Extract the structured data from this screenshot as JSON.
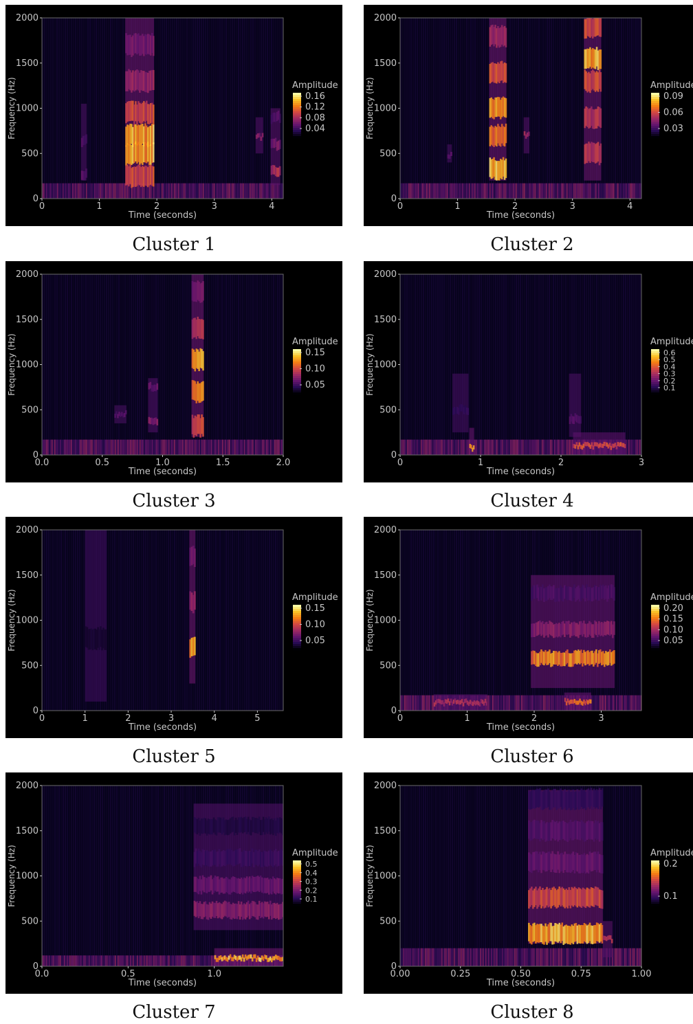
{
  "colormap": "inferno",
  "background": "#000000",
  "chart_data": [
    {
      "type": "heatmap",
      "caption": "Cluster 1",
      "xlabel": "Time (seconds)",
      "ylabel": "Frequency (Hz)",
      "xlim": [
        0,
        4.2
      ],
      "ylim": [
        0,
        2000
      ],
      "xticks": [
        0,
        1,
        2,
        3,
        4
      ],
      "xticklabels": [
        "0",
        "1",
        "2",
        "3",
        "4"
      ],
      "yticks": [
        0,
        500,
        1000,
        1500,
        2000
      ],
      "yticklabels": [
        "0",
        "500",
        "1000",
        "1500",
        "2000"
      ],
      "colorbar": {
        "label": "Amplitude",
        "ticks": [
          "0.16",
          "0.12",
          "0.08",
          "0.04"
        ]
      },
      "noise_band_hz": [
        0,
        170
      ],
      "events": [
        {
          "t0": 0.68,
          "t1": 0.78,
          "f0": 200,
          "f1": 1050,
          "peak": 0.35,
          "bands": [
            [
              270,
              0.9
            ],
            [
              640,
              0.8
            ]
          ]
        },
        {
          "t0": 1.45,
          "t1": 1.95,
          "f0": 150,
          "f1": 2000,
          "peak": 1.0,
          "bands": [
            [
              250,
              0.7
            ],
            [
              500,
              1.0
            ],
            [
              700,
              1.0
            ],
            [
              950,
              0.7
            ],
            [
              1300,
              0.5
            ],
            [
              1700,
              0.4
            ]
          ]
        },
        {
          "t0": 3.72,
          "t1": 3.85,
          "f0": 500,
          "f1": 900,
          "peak": 0.45,
          "bands": [
            [
              680,
              1.0
            ]
          ]
        },
        {
          "t0": 3.98,
          "t1": 4.15,
          "f0": 150,
          "f1": 1000,
          "peak": 0.6,
          "bands": [
            [
              300,
              1.0
            ],
            [
              600,
              0.7
            ],
            [
              900,
              0.5
            ]
          ]
        }
      ]
    },
    {
      "type": "heatmap",
      "caption": "Cluster 2",
      "xlabel": "Time (seconds)",
      "ylabel": "Frequency (Hz)",
      "xlim": [
        0,
        4.2
      ],
      "ylim": [
        0,
        2000
      ],
      "xticks": [
        0,
        1,
        2,
        3,
        4
      ],
      "xticklabels": [
        "0",
        "1",
        "2",
        "3",
        "4"
      ],
      "yticks": [
        0,
        500,
        1000,
        1500,
        2000
      ],
      "yticklabels": [
        "0",
        "500",
        "1000",
        "1500",
        "2000"
      ],
      "colorbar": {
        "label": "Amplitude",
        "ticks": [
          "0.09",
          "0.06",
          "0.03"
        ]
      },
      "noise_band_hz": [
        0,
        170
      ],
      "events": [
        {
          "t0": 0.82,
          "t1": 0.9,
          "f0": 400,
          "f1": 600,
          "peak": 0.3,
          "bands": [
            [
              480,
              1.0
            ]
          ]
        },
        {
          "t0": 1.55,
          "t1": 1.85,
          "f0": 200,
          "f1": 2000,
          "peak": 1.0,
          "bands": [
            [
              330,
              1.0
            ],
            [
              700,
              0.8
            ],
            [
              1000,
              0.9
            ],
            [
              1400,
              0.7
            ],
            [
              1800,
              0.5
            ]
          ]
        },
        {
          "t0": 2.15,
          "t1": 2.25,
          "f0": 500,
          "f1": 900,
          "peak": 0.5,
          "bands": [
            [
              700,
              1.0
            ]
          ]
        },
        {
          "t0": 3.2,
          "t1": 3.5,
          "f0": 200,
          "f1": 2000,
          "peak": 1.0,
          "bands": [
            [
              500,
              0.6
            ],
            [
              900,
              0.6
            ],
            [
              1300,
              0.7
            ],
            [
              1550,
              1.0
            ],
            [
              1900,
              0.7
            ]
          ]
        }
      ]
    },
    {
      "type": "heatmap",
      "caption": "Cluster 3",
      "xlabel": "Time (seconds)",
      "ylabel": "Frequency (Hz)",
      "xlim": [
        0,
        2.0
      ],
      "ylim": [
        0,
        2000
      ],
      "xticks": [
        0,
        0.5,
        1.0,
        1.5,
        2.0
      ],
      "xticklabels": [
        "0.0",
        "0.5",
        "1.0",
        "1.5",
        "2.0"
      ],
      "yticks": [
        0,
        500,
        1000,
        1500,
        2000
      ],
      "yticklabels": [
        "0",
        "500",
        "1000",
        "1500",
        "2000"
      ],
      "colorbar": {
        "label": "Amplitude",
        "ticks": [
          "0.15",
          "0.10",
          "0.05"
        ]
      },
      "noise_band_hz": [
        0,
        170
      ],
      "events": [
        {
          "t0": 0.6,
          "t1": 0.7,
          "f0": 350,
          "f1": 550,
          "peak": 0.3,
          "bands": [
            [
              450,
              1.0
            ]
          ]
        },
        {
          "t0": 0.88,
          "t1": 0.96,
          "f0": 250,
          "f1": 850,
          "peak": 0.45,
          "bands": [
            [
              380,
              1.0
            ],
            [
              750,
              0.8
            ]
          ]
        },
        {
          "t0": 1.24,
          "t1": 1.34,
          "f0": 200,
          "f1": 2000,
          "peak": 1.0,
          "bands": [
            [
              320,
              0.7
            ],
            [
              700,
              0.9
            ],
            [
              1050,
              1.0
            ],
            [
              1400,
              0.6
            ],
            [
              1800,
              0.4
            ]
          ]
        }
      ]
    },
    {
      "type": "heatmap",
      "caption": "Cluster 4",
      "xlabel": "Time (seconds)",
      "ylabel": "Frequency (Hz)",
      "xlim": [
        0,
        3.0
      ],
      "ylim": [
        0,
        2000
      ],
      "xticks": [
        0,
        1,
        2,
        3
      ],
      "xticklabels": [
        "0",
        "1",
        "2",
        "3"
      ],
      "yticks": [
        0,
        500,
        1000,
        1500,
        2000
      ],
      "yticklabels": [
        "0",
        "500",
        "1000",
        "1500",
        "2000"
      ],
      "colorbar": {
        "label": "Amplitude",
        "ticks": [
          "0.6",
          "0.5",
          "0.4",
          "0.3",
          "0.2",
          "0.1"
        ]
      },
      "noise_band_hz": [
        0,
        170
      ],
      "events": [
        {
          "t0": 0.65,
          "t1": 0.85,
          "f0": 250,
          "f1": 900,
          "peak": 0.2,
          "bands": [
            [
              500,
              1.0
            ]
          ]
        },
        {
          "t0": 0.86,
          "t1": 0.92,
          "f0": 0,
          "f1": 300,
          "peak": 0.9,
          "bands": [
            [
              80,
              1.0
            ]
          ]
        },
        {
          "t0": 2.1,
          "t1": 2.25,
          "f0": 200,
          "f1": 900,
          "peak": 0.3,
          "bands": [
            [
              400,
              1.0
            ]
          ]
        },
        {
          "t0": 2.15,
          "t1": 2.8,
          "f0": 0,
          "f1": 250,
          "peak": 0.7,
          "bands": [
            [
              100,
              1.0
            ]
          ]
        }
      ]
    },
    {
      "type": "heatmap",
      "caption": "Cluster 5",
      "xlabel": "Time (seconds)",
      "ylabel": "Frequency (Hz)",
      "xlim": [
        0,
        5.6
      ],
      "ylim": [
        0,
        2000
      ],
      "xticks": [
        0,
        1,
        2,
        3,
        4,
        5
      ],
      "xticklabels": [
        "0",
        "1",
        "2",
        "3",
        "4",
        "5"
      ],
      "yticks": [
        0,
        500,
        1000,
        1500,
        2000
      ],
      "yticklabels": [
        "0",
        "500",
        "1000",
        "1500",
        "2000"
      ],
      "colorbar": {
        "label": "Amplitude",
        "ticks": [
          "0.15",
          "0.10",
          "0.05"
        ]
      },
      "noise_band_hz": [
        0,
        0
      ],
      "events": [
        {
          "t0": 1.0,
          "t1": 1.5,
          "f0": 100,
          "f1": 2000,
          "peak": 0.1,
          "bands": [
            [
              800,
              1.0
            ]
          ]
        },
        {
          "t0": 3.42,
          "t1": 3.56,
          "f0": 300,
          "f1": 2000,
          "peak": 1.0,
          "bands": [
            [
              700,
              1.0
            ],
            [
              1200,
              0.5
            ],
            [
              1700,
              0.4
            ]
          ]
        }
      ]
    },
    {
      "type": "heatmap",
      "caption": "Cluster 6",
      "xlabel": "Time (seconds)",
      "ylabel": "Frequency (Hz)",
      "xlim": [
        0,
        3.6
      ],
      "ylim": [
        0,
        2000
      ],
      "xticks": [
        0,
        1,
        2,
        3
      ],
      "xticklabels": [
        "0",
        "1",
        "2",
        "3"
      ],
      "yticks": [
        0,
        500,
        1000,
        1500,
        2000
      ],
      "yticklabels": [
        "0",
        "500",
        "1000",
        "1500",
        "2000"
      ],
      "colorbar": {
        "label": "Amplitude",
        "ticks": [
          "0.20",
          "0.15",
          "0.10",
          "0.05"
        ]
      },
      "noise_band_hz": [
        0,
        170
      ],
      "events": [
        {
          "t0": 0.5,
          "t1": 1.3,
          "f0": 0,
          "f1": 180,
          "peak": 0.55,
          "bands": [
            [
              90,
              1.0
            ]
          ]
        },
        {
          "t0": 1.95,
          "t1": 3.2,
          "f0": 250,
          "f1": 1500,
          "peak": 0.9,
          "bands": [
            [
              580,
              1.0
            ],
            [
              900,
              0.5
            ],
            [
              1300,
              0.3
            ]
          ]
        },
        {
          "t0": 2.45,
          "t1": 2.85,
          "f0": 0,
          "f1": 200,
          "peak": 0.8,
          "bands": [
            [
              100,
              1.0
            ]
          ]
        }
      ]
    },
    {
      "type": "heatmap",
      "caption": "Cluster 7",
      "xlabel": "Time (seconds)",
      "ylabel": "Frequency (Hz)",
      "xlim": [
        0,
        1.4
      ],
      "ylim": [
        0,
        2000
      ],
      "xticks": [
        0,
        0.5,
        1.0
      ],
      "xticklabels": [
        "0.0",
        "0.5",
        "1.0"
      ],
      "yticks": [
        0,
        500,
        1000,
        1500,
        2000
      ],
      "yticklabels": [
        "0",
        "500",
        "1000",
        "1500",
        "2000"
      ],
      "colorbar": {
        "label": "Amplitude",
        "ticks": [
          "0.5",
          "0.4",
          "0.3",
          "0.2",
          "0.1"
        ]
      },
      "noise_band_hz": [
        0,
        120
      ],
      "events": [
        {
          "t0": 0.88,
          "t1": 1.4,
          "f0": 400,
          "f1": 1800,
          "peak": 0.45,
          "bands": [
            [
              620,
              1.0
            ],
            [
              900,
              0.8
            ],
            [
              1200,
              0.5
            ],
            [
              1550,
              0.3
            ]
          ]
        },
        {
          "t0": 1.0,
          "t1": 1.4,
          "f0": 0,
          "f1": 200,
          "peak": 1.0,
          "bands": [
            [
              90,
              1.0
            ]
          ]
        }
      ]
    },
    {
      "type": "heatmap",
      "caption": "Cluster 8",
      "xlabel": "Time (seconds)",
      "ylabel": "Frequency (Hz)",
      "xlim": [
        0,
        1.0
      ],
      "ylim": [
        0,
        2000
      ],
      "xticks": [
        0,
        0.25,
        0.5,
        0.75,
        1.0
      ],
      "xticklabels": [
        "0.00",
        "0.25",
        "0.50",
        "0.75",
        "1.00"
      ],
      "yticks": [
        0,
        500,
        1000,
        1500,
        2000
      ],
      "yticklabels": [
        "0",
        "500",
        "1000",
        "1500",
        "2000"
      ],
      "colorbar": {
        "label": "Amplitude",
        "ticks": [
          "0.2",
          "0.1"
        ]
      },
      "noise_band_hz": [
        0,
        200
      ],
      "events": [
        {
          "t0": 0.53,
          "t1": 0.84,
          "f0": 250,
          "f1": 1950,
          "peak": 1.0,
          "bands": [
            [
              360,
              1.0
            ],
            [
              760,
              0.7
            ],
            [
              1150,
              0.35
            ],
            [
              1500,
              0.3
            ],
            [
              1850,
              0.2
            ]
          ]
        },
        {
          "t0": 0.84,
          "t1": 0.88,
          "f0": 100,
          "f1": 500,
          "peak": 0.6,
          "bands": [
            [
              300,
              1.0
            ]
          ]
        }
      ]
    }
  ]
}
